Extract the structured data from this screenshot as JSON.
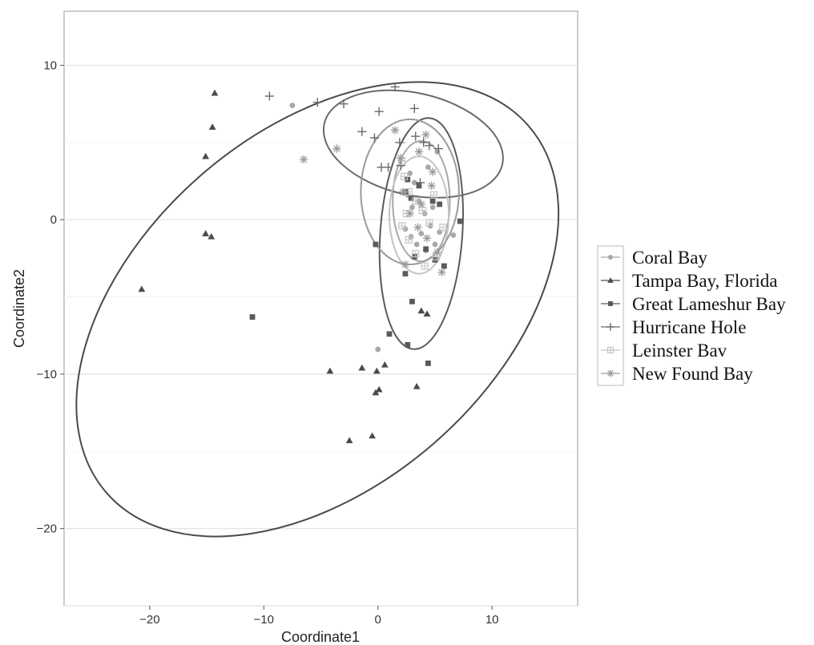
{
  "chart_data": {
    "type": "scatter",
    "title": "",
    "xlabel": "Coordinate1",
    "ylabel": "Coordinate2",
    "xlim": [
      -27.5,
      17.5
    ],
    "ylim": [
      -25,
      13.5
    ],
    "x_ticks": [
      -20,
      -10,
      0,
      10
    ],
    "y_ticks": [
      -20,
      -10,
      0,
      10
    ],
    "grid": true,
    "legend_position": "right",
    "series": [
      {
        "name": "Coral Bay",
        "marker": "circle",
        "color": "#a8a8a8",
        "points": [
          [
            -7.5,
            7.4
          ],
          [
            0.0,
            -8.4
          ],
          [
            2.8,
            3.0
          ],
          [
            3.2,
            2.4
          ],
          [
            3.6,
            1.2
          ],
          [
            4.1,
            0.4
          ],
          [
            4.6,
            -0.4
          ],
          [
            2.4,
            -0.6
          ],
          [
            2.9,
            -1.1
          ],
          [
            3.4,
            -1.6
          ],
          [
            4.2,
            -2.0
          ],
          [
            5.0,
            -1.6
          ],
          [
            5.4,
            -0.8
          ],
          [
            4.8,
            0.8
          ],
          [
            3.0,
            0.8
          ],
          [
            4.4,
            3.4
          ],
          [
            5.2,
            4.4
          ],
          [
            2.6,
            1.6
          ],
          [
            3.8,
            -0.9
          ],
          [
            6.6,
            -1.0
          ]
        ],
        "ellipse": {
          "cx": 3.8,
          "cy": 1.2,
          "rx": 2.5,
          "ry": 3.9,
          "angle": 0
        }
      },
      {
        "name": "Tampa Bay, Florida",
        "marker": "triangle",
        "color": "#4a4a4a",
        "points": [
          [
            -14.3,
            8.2
          ],
          [
            -14.5,
            6.0
          ],
          [
            -15.1,
            4.1
          ],
          [
            -15.1,
            -0.9
          ],
          [
            -14.6,
            -1.1
          ],
          [
            -20.7,
            -4.5
          ],
          [
            -4.2,
            -9.8
          ],
          [
            -1.4,
            -9.6
          ],
          [
            0.6,
            -9.4
          ],
          [
            -0.1,
            -9.8
          ],
          [
            0.1,
            -11.0
          ],
          [
            -0.2,
            -11.2
          ],
          [
            3.4,
            -10.8
          ],
          [
            -2.5,
            -14.3
          ],
          [
            -0.5,
            -14.0
          ],
          [
            3.8,
            -5.9
          ],
          [
            4.3,
            -6.1
          ]
        ],
        "ellipse": {
          "cx": -5.3,
          "cy": -5.8,
          "rx": 24.5,
          "ry": 11.5,
          "angle": -41
        }
      },
      {
        "name": "Great Lameshur Bay",
        "marker": "square",
        "color": "#5a5a5a",
        "points": [
          [
            -11.0,
            -6.3
          ],
          [
            -0.2,
            -1.6
          ],
          [
            1.0,
            -7.4
          ],
          [
            2.6,
            -8.1
          ],
          [
            3.0,
            -5.3
          ],
          [
            4.4,
            -9.3
          ],
          [
            2.4,
            -3.5
          ],
          [
            3.2,
            -2.4
          ],
          [
            4.2,
            -1.9
          ],
          [
            5.0,
            -2.6
          ],
          [
            5.8,
            -3.0
          ],
          [
            7.2,
            -0.1
          ],
          [
            2.4,
            1.8
          ],
          [
            2.9,
            1.4
          ],
          [
            2.6,
            2.6
          ],
          [
            3.6,
            2.2
          ],
          [
            4.8,
            1.2
          ],
          [
            5.4,
            1.0
          ]
        ],
        "ellipse": {
          "cx": 3.8,
          "cy": -0.9,
          "rx": 3.6,
          "ry": 7.5,
          "angle": 4
        }
      },
      {
        "name": "Hurricane Hole",
        "marker": "plus",
        "color": "#6a6a6a",
        "points": [
          [
            -9.5,
            8.0
          ],
          [
            -5.3,
            7.6
          ],
          [
            -3.0,
            7.5
          ],
          [
            1.5,
            8.6
          ],
          [
            3.2,
            7.2
          ],
          [
            0.1,
            7.0
          ],
          [
            -1.4,
            5.7
          ],
          [
            -0.3,
            5.3
          ],
          [
            1.9,
            5.0
          ],
          [
            3.3,
            5.4
          ],
          [
            4.0,
            5.0
          ],
          [
            4.5,
            4.8
          ],
          [
            5.3,
            4.6
          ],
          [
            0.3,
            3.4
          ],
          [
            0.9,
            3.4
          ],
          [
            2.0,
            3.5
          ],
          [
            3.7,
            2.4
          ]
        ],
        "ellipse": {
          "cx": 3.1,
          "cy": 4.9,
          "rx": 8.0,
          "ry": 3.3,
          "angle": 13
        }
      },
      {
        "name": "Leinster Bav",
        "marker": "square-cross",
        "color": "#c4c4c4",
        "points": [
          [
            2.1,
            3.8
          ],
          [
            2.3,
            2.8
          ],
          [
            2.7,
            1.8
          ],
          [
            3.3,
            1.2
          ],
          [
            3.9,
            0.6
          ],
          [
            4.5,
            -0.2
          ],
          [
            2.1,
            -0.4
          ],
          [
            2.7,
            -1.3
          ],
          [
            3.3,
            -2.2
          ],
          [
            4.1,
            -3.0
          ],
          [
            5.1,
            -2.4
          ],
          [
            5.7,
            -0.5
          ],
          [
            4.9,
            1.6
          ],
          [
            2.5,
            0.4
          ]
        ],
        "ellipse": {
          "cx": 3.6,
          "cy": 0.3,
          "rx": 2.6,
          "ry": 3.8,
          "angle": 0
        }
      },
      {
        "name": "New Found Bay",
        "marker": "star",
        "color": "#9a9a9a",
        "points": [
          [
            -6.5,
            3.9
          ],
          [
            -3.6,
            4.6
          ],
          [
            1.5,
            5.8
          ],
          [
            3.6,
            4.4
          ],
          [
            4.2,
            5.5
          ],
          [
            2.0,
            4.0
          ],
          [
            4.8,
            3.1
          ],
          [
            2.2,
            1.8
          ],
          [
            2.8,
            0.4
          ],
          [
            3.5,
            -0.5
          ],
          [
            4.3,
            -1.2
          ],
          [
            5.2,
            -2.1
          ],
          [
            5.6,
            -3.4
          ],
          [
            4.7,
            2.2
          ],
          [
            3.8,
            1.0
          ],
          [
            2.4,
            -2.9
          ]
        ],
        "ellipse": {
          "cx": 2.8,
          "cy": 1.8,
          "rx": 4.3,
          "ry": 4.7,
          "angle": 0
        }
      }
    ]
  }
}
